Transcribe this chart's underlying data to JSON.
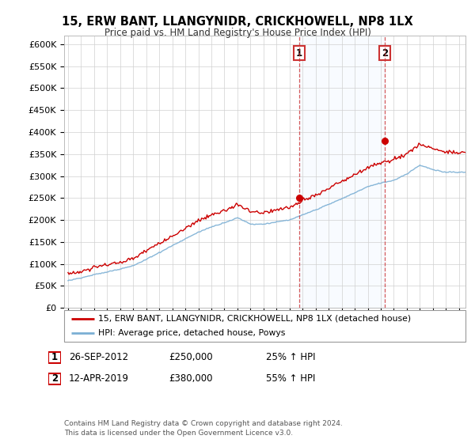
{
  "title": "15, ERW BANT, LLANGYNIDR, CRICKHOWELL, NP8 1LX",
  "subtitle": "Price paid vs. HM Land Registry's House Price Index (HPI)",
  "ytick_values": [
    0,
    50000,
    100000,
    150000,
    200000,
    250000,
    300000,
    350000,
    400000,
    450000,
    500000,
    550000,
    600000
  ],
  "ylim": [
    0,
    620000
  ],
  "x_start_year": 1995,
  "x_end_year": 2025,
  "hpi_color": "#7bafd4",
  "price_color": "#cc0000",
  "vline_color": "#cc3333",
  "span_color": "#ddeeff",
  "marker1_year": 2012.75,
  "marker1_value": 250000,
  "marker2_year": 2019.29,
  "marker2_value": 380000,
  "legend_house_label": "15, ERW BANT, LLANGYNIDR, CRICKHOWELL, NP8 1LX (detached house)",
  "legend_hpi_label": "HPI: Average price, detached house, Powys",
  "annotation1_num": "1",
  "annotation1_date": "26-SEP-2012",
  "annotation1_price": "£250,000",
  "annotation1_hpi": "25% ↑ HPI",
  "annotation2_num": "2",
  "annotation2_date": "12-APR-2019",
  "annotation2_price": "£380,000",
  "annotation2_hpi": "55% ↑ HPI",
  "footer": "Contains HM Land Registry data © Crown copyright and database right 2024.\nThis data is licensed under the Open Government Licence v3.0.",
  "background_color": "#ffffff",
  "grid_color": "#d0d0d0"
}
